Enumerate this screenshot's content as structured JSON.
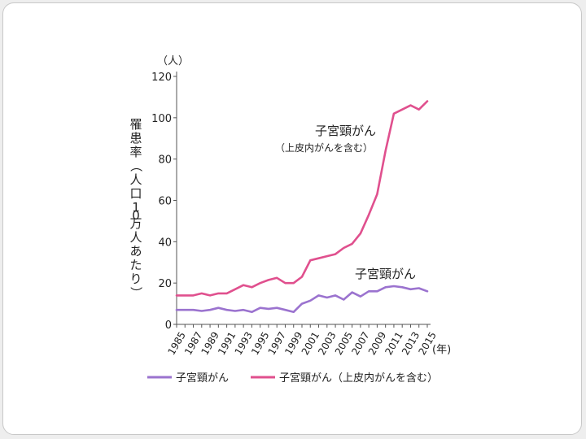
{
  "chart_data": {
    "type": "line",
    "y_unit": "（人）",
    "x_unit": "(年)",
    "ylabel": "罹患率（人口10万人あたり）",
    "ylim": [
      0,
      120
    ],
    "yticks": [
      0,
      20,
      40,
      60,
      80,
      100,
      120
    ],
    "xlim": [
      1985,
      2015
    ],
    "xticks": [
      1985,
      1987,
      1989,
      1991,
      1993,
      1995,
      1997,
      1999,
      2001,
      2003,
      2005,
      2007,
      2009,
      2011,
      2013,
      2015
    ],
    "x": [
      1985,
      1986,
      1987,
      1988,
      1989,
      1990,
      1991,
      1992,
      1993,
      1994,
      1995,
      1996,
      1997,
      1998,
      1999,
      2000,
      2001,
      2002,
      2003,
      2004,
      2005,
      2006,
      2007,
      2008,
      2009,
      2010,
      2011,
      2012,
      2013,
      2014,
      2015
    ],
    "series": [
      {
        "name": "子宮頸がん",
        "color": "#9b73cf",
        "annotation": "子宮頸がん",
        "values": [
          7,
          7,
          7,
          6.5,
          7,
          8,
          7,
          6.5,
          7,
          6,
          8,
          7.5,
          8,
          7,
          6,
          10,
          11.5,
          14,
          13,
          14,
          12,
          15.5,
          13.5,
          16,
          16,
          18,
          18.5,
          18,
          17,
          17.5,
          16
        ]
      },
      {
        "name": "子宮頸がん（上皮内がんを含む）",
        "color": "#e0508e",
        "annotation": "子宮頸がん",
        "annotation_sub": "（上皮内がんを含む）",
        "values": [
          14,
          14,
          14,
          15,
          14,
          15,
          15,
          17,
          19,
          18,
          20,
          21.5,
          22.5,
          20,
          20,
          23,
          31,
          32,
          33,
          34,
          37,
          39,
          44,
          53,
          63,
          84,
          102,
          104,
          106,
          104,
          108
        ]
      }
    ]
  }
}
